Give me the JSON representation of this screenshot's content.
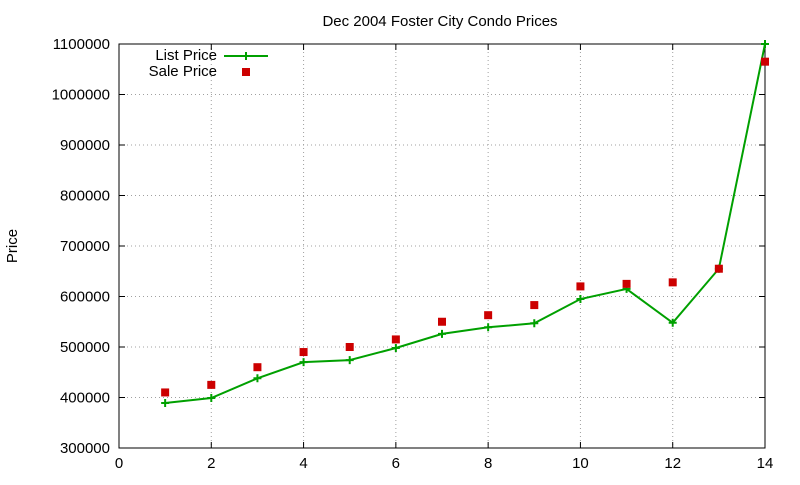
{
  "chart_data": {
    "type": "line",
    "title": "Dec 2004 Foster City Condo Prices",
    "xlabel": "",
    "ylabel": "Price",
    "xlim": [
      0,
      14
    ],
    "ylim": [
      300000,
      1100000
    ],
    "xticks": [
      0,
      2,
      4,
      6,
      8,
      10,
      12,
      14
    ],
    "yticks": [
      300000,
      400000,
      500000,
      600000,
      700000,
      800000,
      900000,
      1000000,
      1100000
    ],
    "grid": true,
    "legend_position": "top-left",
    "series": [
      {
        "name": "List Price",
        "style": "line+cross",
        "color": "#00a000",
        "x": [
          1,
          2,
          3,
          4,
          5,
          6,
          7,
          8,
          9,
          10,
          11,
          12,
          13,
          14
        ],
        "y": [
          389000,
          399000,
          438000,
          470000,
          474000,
          498000,
          526000,
          539000,
          547000,
          595000,
          615000,
          548000,
          655000,
          1100000
        ]
      },
      {
        "name": "Sale Price",
        "style": "square",
        "color": "#cc0000",
        "x": [
          1,
          2,
          3,
          4,
          5,
          6,
          7,
          8,
          9,
          10,
          11,
          12,
          13,
          14
        ],
        "y": [
          410000,
          425000,
          460000,
          490000,
          500000,
          515000,
          550000,
          563000,
          583000,
          620000,
          625000,
          628000,
          655000,
          1065000
        ]
      }
    ]
  }
}
